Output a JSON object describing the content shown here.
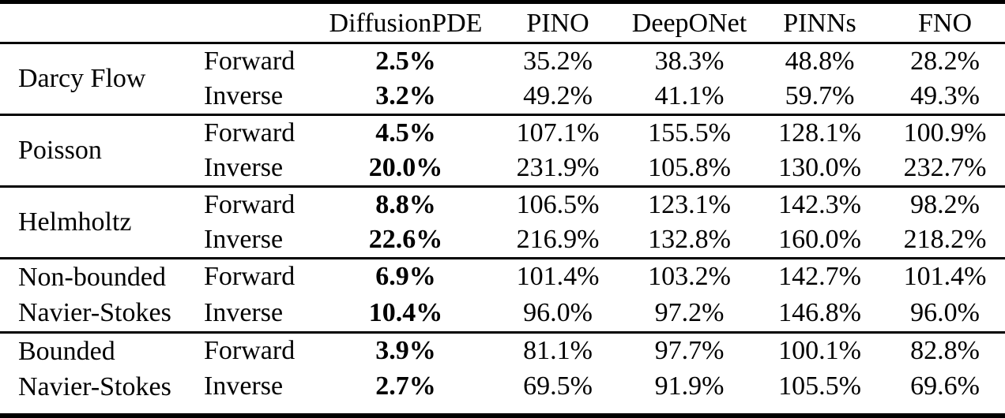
{
  "table": {
    "description": "Comparison of relative errors of forward and inverse problems across PDE families and solver methods",
    "colors": {
      "text": "#000000",
      "background": "#ffffff",
      "rule": "#000000"
    },
    "methods": [
      "DiffusionPDE",
      "PINO",
      "DeepONet",
      "PINNs",
      "FNO"
    ],
    "bold_column": "DiffusionPDE",
    "sections": [
      {
        "label_lines": [
          "Darcy Flow"
        ],
        "rows": [
          {
            "direction": "Forward",
            "values": [
              "2.5%",
              "35.2%",
              "38.3%",
              "48.8%",
              "28.2%"
            ]
          },
          {
            "direction": "Inverse",
            "values": [
              "3.2%",
              "49.2%",
              "41.1%",
              "59.7%",
              "49.3%"
            ]
          }
        ]
      },
      {
        "label_lines": [
          "Poisson"
        ],
        "rows": [
          {
            "direction": "Forward",
            "values": [
              "4.5%",
              "107.1%",
              "155.5%",
              "128.1%",
              "100.9%"
            ]
          },
          {
            "direction": "Inverse",
            "values": [
              "20.0%",
              "231.9%",
              "105.8%",
              "130.0%",
              "232.7%"
            ]
          }
        ]
      },
      {
        "label_lines": [
          "Helmholtz"
        ],
        "rows": [
          {
            "direction": "Forward",
            "values": [
              "8.8%",
              "106.5%",
              "123.1%",
              "142.3%",
              "98.2%"
            ]
          },
          {
            "direction": "Inverse",
            "values": [
              "22.6%",
              "216.9%",
              "132.8%",
              "160.0%",
              "218.2%"
            ]
          }
        ]
      },
      {
        "label_lines": [
          "Non-bounded",
          "Navier-Stokes"
        ],
        "rows": [
          {
            "direction": "Forward",
            "values": [
              "6.9%",
              "101.4%",
              "103.2%",
              "142.7%",
              "101.4%"
            ]
          },
          {
            "direction": "Inverse",
            "values": [
              "10.4%",
              "96.0%",
              "97.2%",
              "146.8%",
              "96.0%"
            ]
          }
        ]
      },
      {
        "label_lines": [
          "Bounded",
          "Navier-Stokes"
        ],
        "rows": [
          {
            "direction": "Forward",
            "values": [
              "3.9%",
              "81.1%",
              "97.7%",
              "100.1%",
              "82.8%"
            ]
          },
          {
            "direction": "Inverse",
            "values": [
              "2.7%",
              "69.5%",
              "91.9%",
              "105.5%",
              "69.6%"
            ]
          }
        ]
      }
    ]
  }
}
